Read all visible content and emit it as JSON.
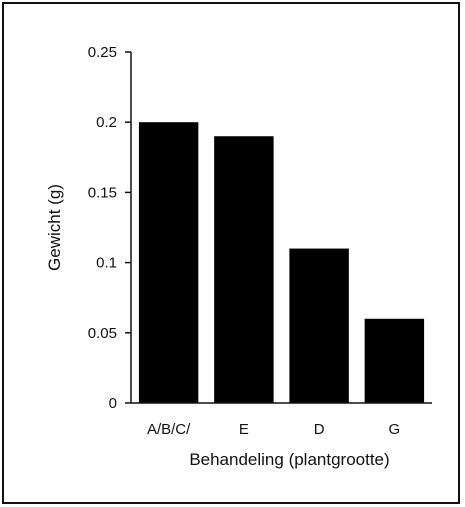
{
  "chart_data": {
    "type": "bar",
    "title": "",
    "xlabel": "Behandeling (plantgrootte)",
    "ylabel": "Gewicht (g)",
    "categories": [
      "A/B/C/",
      "E",
      "D",
      "G"
    ],
    "values": [
      0.2,
      0.19,
      0.11,
      0.06
    ],
    "ylim": [
      0,
      0.25
    ],
    "yticks": [
      0,
      0.05,
      0.1,
      0.15,
      0.2,
      0.25
    ],
    "ytick_labels": [
      "0",
      "0.05",
      "0.1",
      "0.15",
      "0.2",
      "0.25"
    ],
    "grid": false,
    "legend": "none",
    "bar_color": "#000000"
  }
}
